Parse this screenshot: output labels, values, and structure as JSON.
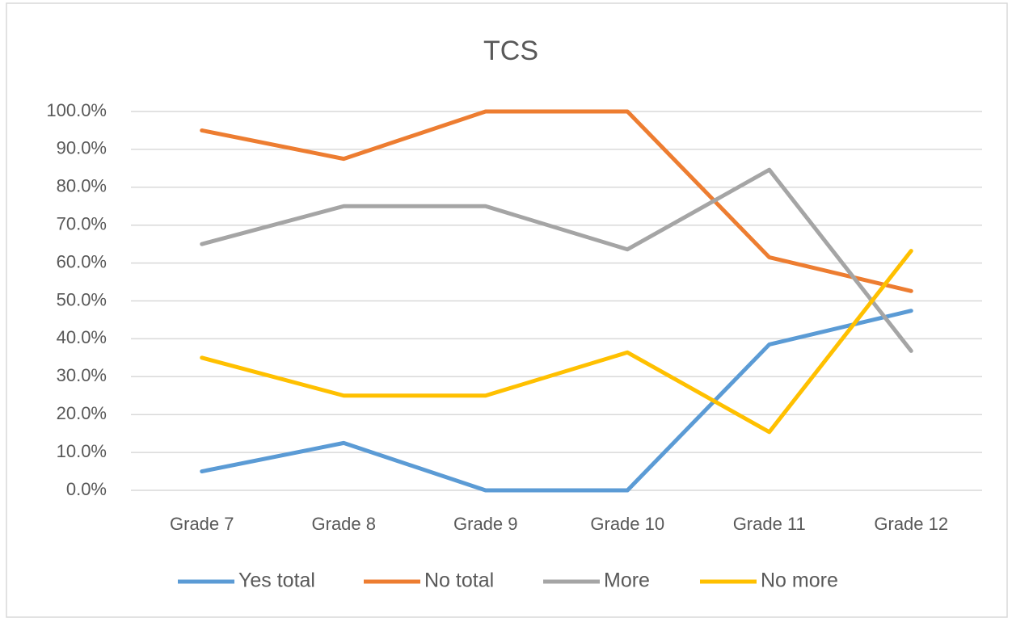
{
  "chart_data": {
    "type": "line",
    "title": "TCS",
    "categories": [
      "Grade 7",
      "Grade 8",
      "Grade 9",
      "Grade 10",
      "Grade 11",
      "Grade 12"
    ],
    "series": [
      {
        "name": "Yes total",
        "color": "#5b9bd5",
        "values": [
          5,
          12.5,
          0,
          0,
          38.5,
          47.4
        ]
      },
      {
        "name": "No total",
        "color": "#ed7d31",
        "values": [
          95,
          87.5,
          100,
          100,
          61.5,
          52.6
        ]
      },
      {
        "name": "More",
        "color": "#a5a5a5",
        "values": [
          65,
          75,
          75,
          63.6,
          84.6,
          36.8
        ]
      },
      {
        "name": "No more",
        "color": "#ffc000",
        "values": [
          35,
          25,
          25,
          36.4,
          15.4,
          63.2
        ]
      }
    ],
    "ylim": [
      0,
      100
    ],
    "yticks": [
      {
        "value": 0,
        "label": "0.0%"
      },
      {
        "value": 10,
        "label": "10.0%"
      },
      {
        "value": 20,
        "label": "20.0%"
      },
      {
        "value": 30,
        "label": "30.0%"
      },
      {
        "value": 40,
        "label": "40.0%"
      },
      {
        "value": 50,
        "label": "50.0%"
      },
      {
        "value": 60,
        "label": "60.0%"
      },
      {
        "value": 70,
        "label": "70.0%"
      },
      {
        "value": 80,
        "label": "80.0%"
      },
      {
        "value": 90,
        "label": "90.0%"
      },
      {
        "value": 100,
        "label": "100.0%"
      }
    ],
    "grid": true,
    "legend": "bottom"
  }
}
